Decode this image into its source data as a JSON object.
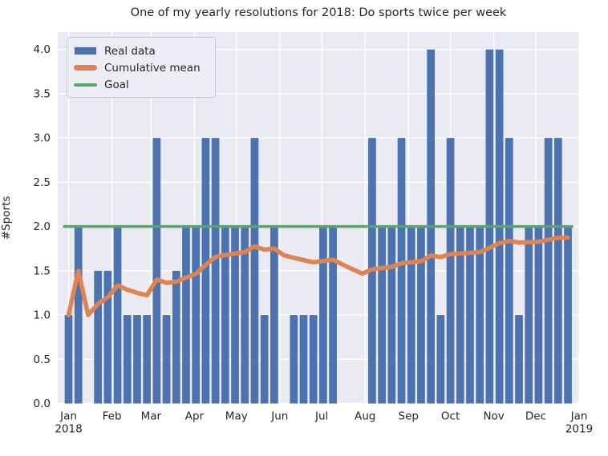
{
  "chart_data": {
    "type": "bar",
    "title": "One of my yearly resolutions for 2018: Do sports twice per week",
    "xlabel": "",
    "ylabel": "#Sports",
    "x_unit": "52 weekly bars spanning Jan 2018 - Jan 2019",
    "ylim": [
      0,
      4.2
    ],
    "grid": true,
    "background_color": "#EAEAF2",
    "gridline_color": "#FFFFFF",
    "text_color": "#262626",
    "yticks": [
      "0.0",
      "0.5",
      "1.0",
      "1.5",
      "2.0",
      "2.5",
      "3.0",
      "3.5",
      "4.0"
    ],
    "xticks": [
      {
        "label": "Jan",
        "sublabel": "2018",
        "day": 0
      },
      {
        "label": "Feb",
        "day": 31
      },
      {
        "label": "Mar",
        "day": 59
      },
      {
        "label": "Apr",
        "day": 90
      },
      {
        "label": "May",
        "day": 120
      },
      {
        "label": "Jun",
        "day": 151
      },
      {
        "label": "Jul",
        "day": 181
      },
      {
        "label": "Aug",
        "day": 212
      },
      {
        "label": "Sep",
        "day": 243
      },
      {
        "label": "Oct",
        "day": 273
      },
      {
        "label": "Nov",
        "day": 304
      },
      {
        "label": "Dec",
        "day": 334
      },
      {
        "label": "Jan",
        "sublabel": "2019",
        "day": 365
      }
    ],
    "legend": {
      "position": "upper-left",
      "entries": [
        {
          "label": "Real data",
          "type": "bar",
          "color": "#4C72B0"
        },
        {
          "label": "Cumulative mean",
          "type": "line",
          "color": "#DD8452"
        },
        {
          "label": "Goal",
          "type": "line",
          "color": "#55A868"
        }
      ]
    },
    "series": [
      {
        "name": "Real data",
        "type": "bar",
        "color": "#4C72B0",
        "values": [
          1,
          2,
          0,
          1.5,
          1.5,
          2,
          1,
          1,
          1,
          3,
          1,
          1.5,
          2,
          2,
          3,
          3,
          2,
          2,
          2,
          3,
          1,
          2,
          0,
          1,
          1,
          1,
          2,
          2,
          0,
          0,
          0,
          3,
          2,
          2,
          3,
          2,
          2,
          4,
          1,
          3,
          2,
          2,
          2,
          4,
          4,
          3,
          1,
          2,
          2,
          3,
          3,
          2
        ]
      },
      {
        "name": "Cumulative mean",
        "type": "line",
        "color": "#DD8452",
        "values": [
          1.0,
          1.5,
          1.0,
          1.125,
          1.2,
          1.3333,
          1.2857,
          1.25,
          1.2222,
          1.4,
          1.3636,
          1.375,
          1.4231,
          1.4643,
          1.5667,
          1.6562,
          1.6765,
          1.6944,
          1.7105,
          1.775,
          1.7381,
          1.75,
          1.6739,
          1.6458,
          1.62,
          1.5962,
          1.6111,
          1.625,
          1.569,
          1.5167,
          1.4677,
          1.5156,
          1.5303,
          1.5441,
          1.5857,
          1.5972,
          1.6081,
          1.6711,
          1.6538,
          1.6875,
          1.6951,
          1.7024,
          1.7093,
          1.7614,
          1.8111,
          1.837,
          1.8191,
          1.8229,
          1.8265,
          1.85,
          1.8725,
          1.875
        ]
      },
      {
        "name": "Goal",
        "type": "line",
        "color": "#55A868",
        "value": 2
      }
    ]
  }
}
